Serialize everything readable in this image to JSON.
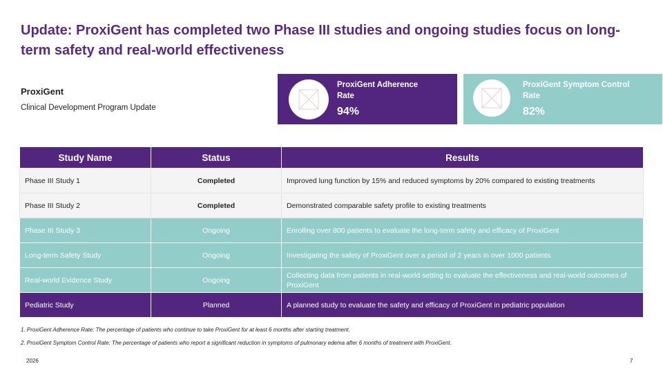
{
  "title": "Update: ProxiGent has completed two Phase III studies and ongoing studies focus on long-term safety and real-world effectiveness",
  "company": "ProxiGent",
  "subtitle": "Clinical Development Program Update",
  "kpis": [
    {
      "label": "ProxiGent Adherence Rate",
      "value": "94%",
      "color": "#52267e",
      "icon": "image-placeholder-icon"
    },
    {
      "label": "ProxiGent Symptom Control Rate",
      "value": "82%",
      "color": "#92cdca",
      "icon": "image-placeholder-icon"
    }
  ],
  "table": {
    "headers": [
      "Study Name",
      "Status",
      "Results"
    ],
    "rows": [
      {
        "name": "Phase III Study 1",
        "status": "Completed",
        "result": "Improved lung function by 15% and reduced symptoms by 20% compared to existing treatments"
      },
      {
        "name": "Phase III Study 2",
        "status": "Completed",
        "result": "Demonstrated comparable safety profile to existing treatments"
      },
      {
        "name": "Phase III Study 3",
        "status": "Ongoing",
        "result": "Enrolling over 800 patients to evaluate the long-term safety and efficacy of ProxiGent"
      },
      {
        "name": "Long-term Safety Study",
        "status": "Ongoing",
        "result": "Investigating the safety of ProxiGent over a period of 2 years in over 1000 patients"
      },
      {
        "name": "Real-world Evidence Study",
        "status": "Ongoing",
        "result": "Collecting data from patients in real-world setting to evaluate the effectiveness and real-world outcomes of ProxiGent"
      },
      {
        "name": "Pediatric Study",
        "status": "Planned",
        "result": "A planned study to evaluate the safety and efficacy of ProxiGent in pediatric population"
      }
    ]
  },
  "colors": {
    "purple": "#52267e",
    "teal": "#92cdca",
    "title": "#5a2a82"
  },
  "footnotes": [
    "1. ProxiGent Adherence Rate: The percentage of patients who continue to take ProxiGent for at least 6 months after starting treatment.",
    "2. ProxiGent Symptom Control Rate: The percentage of patients who report a significant reduction in symptoms of pulmonary edema after 6 months of treatment with ProxiGent."
  ],
  "footer": {
    "year": "2026",
    "page": "7"
  }
}
